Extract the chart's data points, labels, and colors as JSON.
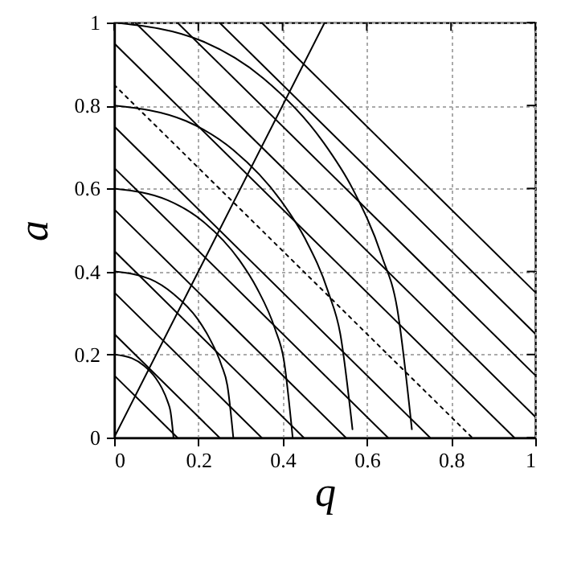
{
  "chart_data": {
    "type": "line",
    "xlabel": "q",
    "ylabel": "a",
    "xlim": [
      0,
      1
    ],
    "ylim": [
      0,
      1
    ],
    "xticks": [
      0,
      0.2,
      0.4,
      0.6,
      0.8,
      1
    ],
    "yticks": [
      0,
      0.2,
      0.4,
      0.6,
      0.8,
      1
    ],
    "grid": true,
    "marker": "none",
    "series": [
      {
        "color": "#000000",
        "x": [
          0,
          0.15
        ],
        "values": [
          0.15,
          0
        ]
      },
      {
        "color": "#000000",
        "x": [
          0,
          0.25
        ],
        "values": [
          0.25,
          0
        ]
      },
      {
        "color": "#000000",
        "x": [
          0,
          0.35
        ],
        "values": [
          0.35,
          0
        ]
      },
      {
        "color": "#000000",
        "x": [
          0,
          0.45
        ],
        "values": [
          0.45,
          0
        ]
      },
      {
        "color": "#000000",
        "x": [
          0,
          0.55
        ],
        "values": [
          0.55,
          0
        ]
      },
      {
        "color": "#000000",
        "x": [
          0,
          0.65
        ],
        "values": [
          0.65,
          0
        ]
      },
      {
        "color": "#000000",
        "x": [
          0,
          0.75
        ],
        "values": [
          0.75,
          0
        ]
      },
      {
        "color": "#000000",
        "x": [
          0,
          0.85
        ],
        "values": [
          0.85,
          0
        ],
        "line_style": "dotted"
      },
      {
        "color": "#000000",
        "x": [
          0,
          0.95
        ],
        "values": [
          0.95,
          0
        ]
      },
      {
        "color": "#000000",
        "x": [
          0.05,
          1
        ],
        "values": [
          1,
          0.05
        ]
      },
      {
        "color": "#000000",
        "x": [
          0.15,
          1
        ],
        "values": [
          1,
          0.15
        ]
      },
      {
        "color": "#000000",
        "x": [
          0.25,
          1
        ],
        "values": [
          1,
          0.25
        ]
      },
      {
        "color": "#000000",
        "x": [
          0.35,
          1
        ],
        "values": [
          1,
          0.35
        ]
      },
      {
        "color": "#000000",
        "x": [
          0,
          0.042,
          0.071,
          0.099,
          0.113,
          0.127,
          0.134,
          0.141
        ],
        "values": [
          0.2,
          0.191,
          0.173,
          0.143,
          0.12,
          0.087,
          0.062,
          0
        ]
      },
      {
        "color": "#000000",
        "x": [
          0,
          0.085,
          0.141,
          0.198,
          0.226,
          0.255,
          0.269,
          0.283
        ],
        "values": [
          0.4,
          0.382,
          0.346,
          0.286,
          0.24,
          0.174,
          0.125,
          0
        ]
      },
      {
        "color": "#000000",
        "x": [
          0,
          0.127,
          0.212,
          0.297,
          0.339,
          0.382,
          0.403,
          0.424
        ],
        "values": [
          0.6,
          0.572,
          0.52,
          0.428,
          0.36,
          0.262,
          0.187,
          0
        ]
      },
      {
        "color": "#000000",
        "x": [
          0,
          0.17,
          0.283,
          0.396,
          0.453,
          0.509,
          0.537,
          0.566
        ],
        "values": [
          0.8,
          0.763,
          0.693,
          0.571,
          0.48,
          0.349,
          0.25,
          0.02
        ]
      },
      {
        "color": "#000000",
        "x": [
          0,
          0.212,
          0.354,
          0.495,
          0.566,
          0.636,
          0.672,
          0.707
        ],
        "values": [
          1,
          0.954,
          0.866,
          0.714,
          0.6,
          0.436,
          0.312,
          0.02
        ]
      },
      {
        "color": "#000000",
        "x": [
          0,
          0.5
        ],
        "values": [
          0,
          1
        ]
      }
    ]
  }
}
